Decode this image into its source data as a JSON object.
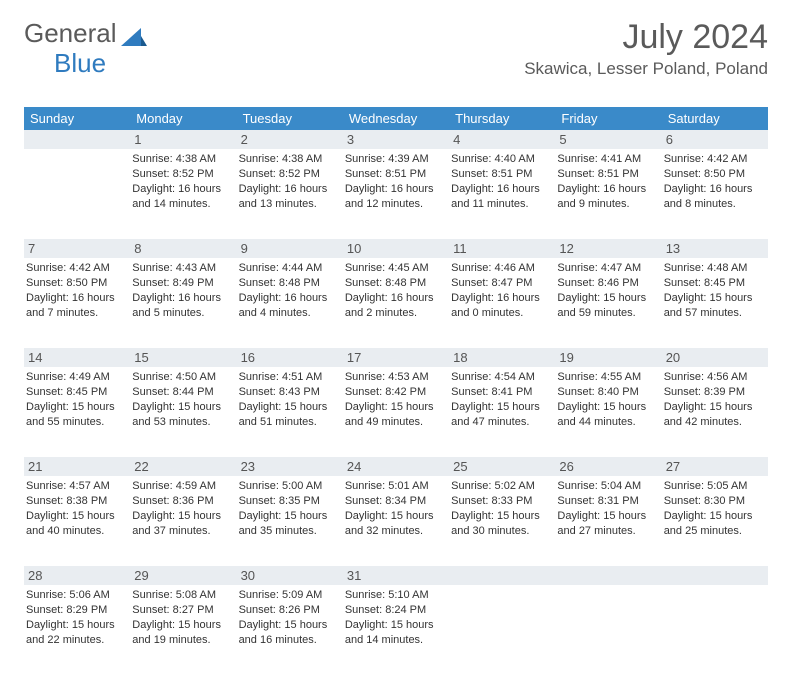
{
  "logo": {
    "general": "General",
    "blue": "Blue"
  },
  "title": "July 2024",
  "location": "Skawica, Lesser Poland, Poland",
  "colors": {
    "header_bg": "#3a8ac9",
    "header_text": "#ffffff",
    "daynum_bg": "#e9edf1",
    "border": "#3a8ac9",
    "title_color": "#5a5a5a",
    "logo_gray": "#5a5a5a",
    "logo_blue": "#2f7bbf"
  },
  "day_headers": [
    "Sunday",
    "Monday",
    "Tuesday",
    "Wednesday",
    "Thursday",
    "Friday",
    "Saturday"
  ],
  "weeks": [
    [
      {
        "day": "",
        "sunrise": "",
        "sunset": "",
        "daylight": ""
      },
      {
        "day": "1",
        "sunrise": "Sunrise: 4:38 AM",
        "sunset": "Sunset: 8:52 PM",
        "daylight": "Daylight: 16 hours and 14 minutes."
      },
      {
        "day": "2",
        "sunrise": "Sunrise: 4:38 AM",
        "sunset": "Sunset: 8:52 PM",
        "daylight": "Daylight: 16 hours and 13 minutes."
      },
      {
        "day": "3",
        "sunrise": "Sunrise: 4:39 AM",
        "sunset": "Sunset: 8:51 PM",
        "daylight": "Daylight: 16 hours and 12 minutes."
      },
      {
        "day": "4",
        "sunrise": "Sunrise: 4:40 AM",
        "sunset": "Sunset: 8:51 PM",
        "daylight": "Daylight: 16 hours and 11 minutes."
      },
      {
        "day": "5",
        "sunrise": "Sunrise: 4:41 AM",
        "sunset": "Sunset: 8:51 PM",
        "daylight": "Daylight: 16 hours and 9 minutes."
      },
      {
        "day": "6",
        "sunrise": "Sunrise: 4:42 AM",
        "sunset": "Sunset: 8:50 PM",
        "daylight": "Daylight: 16 hours and 8 minutes."
      }
    ],
    [
      {
        "day": "7",
        "sunrise": "Sunrise: 4:42 AM",
        "sunset": "Sunset: 8:50 PM",
        "daylight": "Daylight: 16 hours and 7 minutes."
      },
      {
        "day": "8",
        "sunrise": "Sunrise: 4:43 AM",
        "sunset": "Sunset: 8:49 PM",
        "daylight": "Daylight: 16 hours and 5 minutes."
      },
      {
        "day": "9",
        "sunrise": "Sunrise: 4:44 AM",
        "sunset": "Sunset: 8:48 PM",
        "daylight": "Daylight: 16 hours and 4 minutes."
      },
      {
        "day": "10",
        "sunrise": "Sunrise: 4:45 AM",
        "sunset": "Sunset: 8:48 PM",
        "daylight": "Daylight: 16 hours and 2 minutes."
      },
      {
        "day": "11",
        "sunrise": "Sunrise: 4:46 AM",
        "sunset": "Sunset: 8:47 PM",
        "daylight": "Daylight: 16 hours and 0 minutes."
      },
      {
        "day": "12",
        "sunrise": "Sunrise: 4:47 AM",
        "sunset": "Sunset: 8:46 PM",
        "daylight": "Daylight: 15 hours and 59 minutes."
      },
      {
        "day": "13",
        "sunrise": "Sunrise: 4:48 AM",
        "sunset": "Sunset: 8:45 PM",
        "daylight": "Daylight: 15 hours and 57 minutes."
      }
    ],
    [
      {
        "day": "14",
        "sunrise": "Sunrise: 4:49 AM",
        "sunset": "Sunset: 8:45 PM",
        "daylight": "Daylight: 15 hours and 55 minutes."
      },
      {
        "day": "15",
        "sunrise": "Sunrise: 4:50 AM",
        "sunset": "Sunset: 8:44 PM",
        "daylight": "Daylight: 15 hours and 53 minutes."
      },
      {
        "day": "16",
        "sunrise": "Sunrise: 4:51 AM",
        "sunset": "Sunset: 8:43 PM",
        "daylight": "Daylight: 15 hours and 51 minutes."
      },
      {
        "day": "17",
        "sunrise": "Sunrise: 4:53 AM",
        "sunset": "Sunset: 8:42 PM",
        "daylight": "Daylight: 15 hours and 49 minutes."
      },
      {
        "day": "18",
        "sunrise": "Sunrise: 4:54 AM",
        "sunset": "Sunset: 8:41 PM",
        "daylight": "Daylight: 15 hours and 47 minutes."
      },
      {
        "day": "19",
        "sunrise": "Sunrise: 4:55 AM",
        "sunset": "Sunset: 8:40 PM",
        "daylight": "Daylight: 15 hours and 44 minutes."
      },
      {
        "day": "20",
        "sunrise": "Sunrise: 4:56 AM",
        "sunset": "Sunset: 8:39 PM",
        "daylight": "Daylight: 15 hours and 42 minutes."
      }
    ],
    [
      {
        "day": "21",
        "sunrise": "Sunrise: 4:57 AM",
        "sunset": "Sunset: 8:38 PM",
        "daylight": "Daylight: 15 hours and 40 minutes."
      },
      {
        "day": "22",
        "sunrise": "Sunrise: 4:59 AM",
        "sunset": "Sunset: 8:36 PM",
        "daylight": "Daylight: 15 hours and 37 minutes."
      },
      {
        "day": "23",
        "sunrise": "Sunrise: 5:00 AM",
        "sunset": "Sunset: 8:35 PM",
        "daylight": "Daylight: 15 hours and 35 minutes."
      },
      {
        "day": "24",
        "sunrise": "Sunrise: 5:01 AM",
        "sunset": "Sunset: 8:34 PM",
        "daylight": "Daylight: 15 hours and 32 minutes."
      },
      {
        "day": "25",
        "sunrise": "Sunrise: 5:02 AM",
        "sunset": "Sunset: 8:33 PM",
        "daylight": "Daylight: 15 hours and 30 minutes."
      },
      {
        "day": "26",
        "sunrise": "Sunrise: 5:04 AM",
        "sunset": "Sunset: 8:31 PM",
        "daylight": "Daylight: 15 hours and 27 minutes."
      },
      {
        "day": "27",
        "sunrise": "Sunrise: 5:05 AM",
        "sunset": "Sunset: 8:30 PM",
        "daylight": "Daylight: 15 hours and 25 minutes."
      }
    ],
    [
      {
        "day": "28",
        "sunrise": "Sunrise: 5:06 AM",
        "sunset": "Sunset: 8:29 PM",
        "daylight": "Daylight: 15 hours and 22 minutes."
      },
      {
        "day": "29",
        "sunrise": "Sunrise: 5:08 AM",
        "sunset": "Sunset: 8:27 PM",
        "daylight": "Daylight: 15 hours and 19 minutes."
      },
      {
        "day": "30",
        "sunrise": "Sunrise: 5:09 AM",
        "sunset": "Sunset: 8:26 PM",
        "daylight": "Daylight: 15 hours and 16 minutes."
      },
      {
        "day": "31",
        "sunrise": "Sunrise: 5:10 AM",
        "sunset": "Sunset: 8:24 PM",
        "daylight": "Daylight: 15 hours and 14 minutes."
      },
      {
        "day": "",
        "sunrise": "",
        "sunset": "",
        "daylight": ""
      },
      {
        "day": "",
        "sunrise": "",
        "sunset": "",
        "daylight": ""
      },
      {
        "day": "",
        "sunrise": "",
        "sunset": "",
        "daylight": ""
      }
    ]
  ]
}
